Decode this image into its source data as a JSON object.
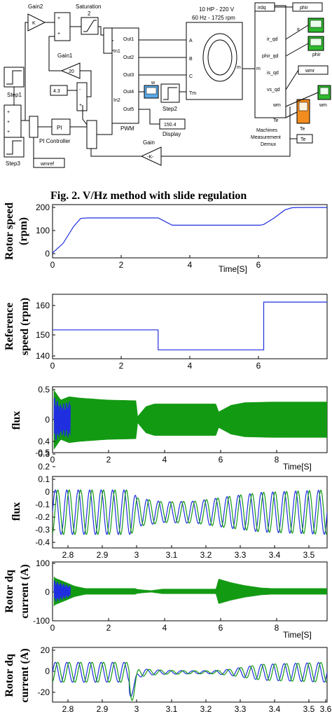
{
  "diagram": {
    "blocks": {
      "gain2": "Gain2",
      "gain2_symbol": "K",
      "saturation": "Saturation",
      "saturation_value": "2",
      "gain1": "Gain1",
      "gain1_value": "20",
      "const_value": "4.3",
      "step1": "Step1",
      "step3": "Step3",
      "pi_label": "PI",
      "pi_controller": "PI Controller",
      "pwm": "PWM",
      "pwm_in1": "In1",
      "pwm_in2": "In2",
      "pwm_out1": "Out1",
      "pwm_out2": "Out2",
      "pwm_out3": "Out3",
      "pwm_out4": "Out4",
      "pwm_out5": "Out5",
      "scope_w": "w",
      "step2": "Step2",
      "display_value": "150.4",
      "display": "Display",
      "motor_line1": "10 HP - 220 V",
      "motor_line2": "60 Hz - 1725 rpm",
      "motor_A": "A",
      "motor_B": "B",
      "motor_C": "C",
      "motor_Tm": "Tm",
      "motor_m": "m",
      "demux_m": "m",
      "demux_ir": "ir_qd",
      "demux_phir": "phir_qd",
      "demux_is": "is_qd",
      "demux_vs": "vs_qd",
      "demux_wm": "wm",
      "demux_Te": "Te",
      "demux_label1": "Machines",
      "demux_label2": "Measurement",
      "demux_label3": "Demux",
      "goto_irdq": "irdq",
      "goto_phir": "phir",
      "goto_wmr": "wmr",
      "goto_Te": "Te",
      "scope_ir": "ir",
      "scope_phir": "phir",
      "scope_wm": "wm",
      "scope_Te": "Te",
      "gain": "Gain",
      "gain_symbol": "-K-",
      "wmref": "wmref"
    },
    "colors": {
      "scope_green": "#2db82d",
      "scope_blue": "#5aa9e6",
      "scope_orange": "#f28c1e"
    }
  },
  "caption": "Fig. 2. V/Hz method with slide regulation",
  "plot_colors": {
    "blue": "#1f2fe0",
    "green": "#139a13"
  },
  "chart_data": [
    {
      "type": "line",
      "ylabel_line1": "Rotor speed",
      "ylabel_line2": "(rpm)",
      "xlabel": "Time[S]",
      "xlim": [
        0,
        7.8
      ],
      "ylim": [
        -20,
        200
      ],
      "xticks": [
        "0",
        "2",
        "4",
        "6"
      ],
      "yticks": [
        "0",
        "100",
        "200"
      ],
      "series": [
        {
          "x": [
            0,
            0.3,
            0.6,
            0.8,
            1,
            3,
            3.2,
            3.4,
            4,
            5,
            5.9,
            6,
            6.3,
            6.6,
            6.8,
            7,
            7.8
          ],
          "values": [
            0,
            40,
            110,
            143,
            145,
            145,
            130,
            115,
            115,
            115,
            115,
            118,
            145,
            178,
            187,
            188,
            188
          ]
        }
      ]
    },
    {
      "type": "line",
      "ylabel_line1": "Reference",
      "ylabel_line2": "speed (rpm)",
      "xlim": [
        0,
        7.8
      ],
      "ylim": [
        137,
        166
      ],
      "xticks": [
        "0",
        "2",
        "4",
        "6"
      ],
      "yticks": [
        "140",
        "150",
        "160"
      ],
      "series": [
        {
          "x": [
            0,
            3,
            3,
            6,
            6,
            7.8
          ],
          "values": [
            150,
            150,
            141,
            141,
            162.5,
            162.5
          ]
        }
      ]
    },
    {
      "type": "line",
      "ylabel_line1": "flux",
      "xlabel": "Time[S]",
      "xlim": [
        0,
        10
      ],
      "ylim": [
        -0.5,
        0.5
      ],
      "xticks": [
        "0",
        "2",
        "4",
        "6",
        "8"
      ],
      "yticks": [
        "-0.5",
        "0",
        "0.5"
      ],
      "envelope_x": [
        0.05,
        0.3,
        0.6,
        1,
        2,
        3.04,
        3.1,
        3.4,
        3.7,
        4,
        5,
        5.95,
        6.05,
        6.5,
        7,
        8,
        10
      ],
      "envelope_amplitude": [
        0.45,
        0.3,
        0.35,
        0.33,
        0.3,
        0.29,
        0.05,
        0.2,
        0.24,
        0.24,
        0.24,
        0.24,
        0.12,
        0.22,
        0.26,
        0.27,
        0.27
      ]
    },
    {
      "type": "line",
      "ylabel_line1": "flux",
      "xlim": [
        2.76,
        3.6
      ],
      "ylim": [
        -0.45,
        0.45
      ],
      "xticks": [
        "2.8",
        "2.9",
        "3",
        "3.1",
        "3.2",
        "3.3",
        "3.4",
        "3.5"
      ],
      "yticks": [
        "-0.4",
        "-0.3",
        "-0.2",
        "-0.1",
        "0",
        "0.1",
        "0.2",
        "0.3",
        "0.4"
      ],
      "envelope_x": [
        2.76,
        3.0,
        3.02,
        3.1,
        3.2,
        3.3,
        3.4,
        3.6
      ],
      "envelope_amplitude": [
        0.28,
        0.28,
        0.18,
        0.13,
        0.14,
        0.2,
        0.25,
        0.28
      ]
    },
    {
      "type": "line",
      "ylabel_line1": "Rotor dq",
      "ylabel_line2": "current (A)",
      "xlabel": "Time[S]",
      "xlim": [
        0,
        10
      ],
      "ylim": [
        -100,
        100
      ],
      "xticks": [
        "0",
        "2",
        "4",
        "6",
        "8"
      ],
      "yticks": [
        "-100",
        "0",
        "100"
      ],
      "envelope_x": [
        0.05,
        0.1,
        0.5,
        0.8,
        1.2,
        3.0,
        3.1,
        3.3,
        3.6,
        4,
        5.95,
        6.05,
        6.5,
        7,
        7.6,
        8,
        10
      ],
      "envelope_amplitude": [
        50,
        45,
        30,
        18,
        10,
        10,
        7,
        5,
        3,
        8,
        8,
        42,
        30,
        20,
        12,
        10,
        10
      ]
    },
    {
      "type": "line",
      "ylabel_line1": "Rotor dq",
      "ylabel_line2": "current (A)",
      "xlim": [
        2.76,
        3.6
      ],
      "ylim": [
        -30,
        25
      ],
      "xticks": [
        "2.8",
        "2.9",
        "3",
        "3.1",
        "3.2",
        "3.3",
        "3.4",
        "3.5",
        "3.6"
      ],
      "yticks": [
        "-20",
        "0",
        "20"
      ],
      "envelope_x": [
        2.76,
        3.0,
        3.01,
        3.05,
        3.1,
        3.2,
        3.25,
        3.3,
        3.4,
        3.6
      ],
      "envelope_amplitude": [
        10,
        10,
        6,
        3,
        2,
        1.5,
        1.5,
        3,
        8,
        10
      ],
      "transient_dip": -20
    }
  ]
}
